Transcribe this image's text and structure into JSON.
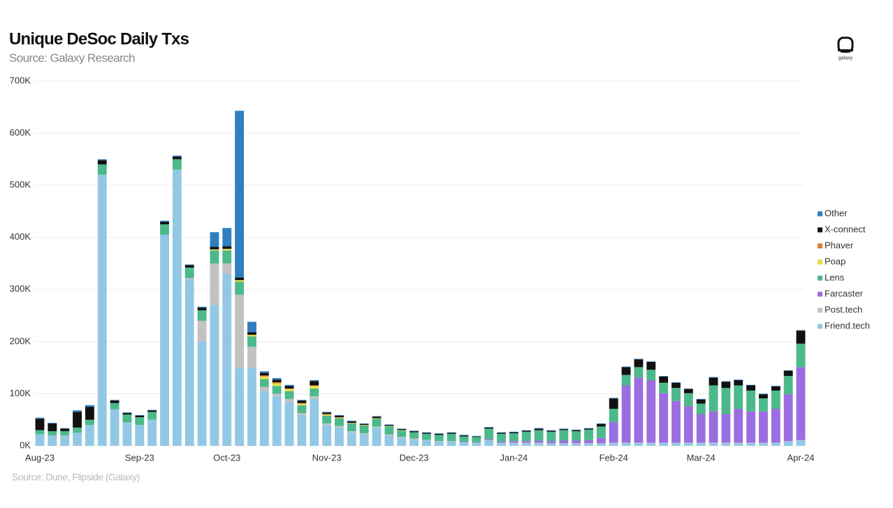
{
  "logo": "galaxy",
  "chart_data": {
    "type": "stacked_bar",
    "title": "Unique DeSoc Daily Txs",
    "subtitle": "Source: Galaxy Research",
    "footnote": "Source: Dune, Flipside (Galaxy)",
    "categories": [
      "Aug-23",
      null,
      null,
      null,
      null,
      null,
      null,
      null,
      "Sep-23",
      null,
      null,
      null,
      null,
      null,
      null,
      "Oct-23",
      null,
      null,
      null,
      null,
      null,
      null,
      null,
      "Nov-23",
      null,
      null,
      null,
      null,
      null,
      null,
      "Dec-23",
      null,
      null,
      null,
      null,
      null,
      null,
      null,
      "Jan-24",
      null,
      null,
      null,
      null,
      null,
      null,
      null,
      "Feb-24",
      null,
      null,
      null,
      null,
      null,
      null,
      "Mar-24",
      null,
      null,
      null,
      null,
      null,
      null,
      null,
      "Apr-24"
    ],
    "ylim": [
      0,
      700000
    ],
    "yticks": [
      {
        "value": 0,
        "label": "0K"
      },
      {
        "value": 100000,
        "label": "100K"
      },
      {
        "value": 200000,
        "label": "200K"
      },
      {
        "value": 300000,
        "label": "300K"
      },
      {
        "value": 400000,
        "label": "400K"
      },
      {
        "value": 500000,
        "label": "500K"
      },
      {
        "value": 600000,
        "label": "600K"
      },
      {
        "value": 700000,
        "label": "700K"
      }
    ],
    "grid": true,
    "legend": "right",
    "series": [
      {
        "name": "Friend.tech",
        "color": "#92c8e6",
        "values": [
          22000,
          20000,
          20000,
          25000,
          40000,
          520000,
          70000,
          45000,
          40000,
          50000,
          405000,
          530000,
          320000,
          200000,
          270000,
          330000,
          150000,
          150000,
          105000,
          95000,
          85000,
          60000,
          90000,
          40000,
          35000,
          25000,
          22000,
          35000,
          20000,
          15000,
          12000,
          10000,
          8000,
          8000,
          6000,
          5000,
          10000,
          5000,
          5000,
          5000,
          5000,
          4000,
          4000,
          4000,
          4000,
          4000,
          5000,
          5000,
          5000,
          5000,
          5000,
          5000,
          5000,
          5000,
          5000,
          5000,
          5000,
          5000,
          5000,
          5000,
          8000,
          10000
        ]
      },
      {
        "name": "Post.tech",
        "color": "#c2c2c2",
        "values": [
          0,
          0,
          0,
          0,
          0,
          0,
          0,
          0,
          0,
          0,
          0,
          0,
          2000,
          40000,
          80000,
          20000,
          140000,
          40000,
          8000,
          5000,
          5000,
          3000,
          5000,
          3000,
          3000,
          3000,
          2000,
          2000,
          2000,
          2000,
          2000,
          1000,
          1000,
          1000,
          1000,
          1000,
          1000,
          1000,
          1000,
          1000,
          1000,
          1000,
          1000,
          1000,
          1000,
          1000,
          1000,
          1000,
          1000,
          1000,
          1000,
          1000,
          1000,
          1000,
          1000,
          1000,
          1000,
          1000,
          1000,
          1000,
          1000,
          1000
        ]
      },
      {
        "name": "Farcaster",
        "color": "#9a6ee0",
        "values": [
          0,
          0,
          0,
          0,
          0,
          0,
          0,
          0,
          0,
          0,
          0,
          0,
          0,
          0,
          0,
          0,
          0,
          0,
          0,
          0,
          0,
          0,
          0,
          0,
          0,
          0,
          0,
          0,
          0,
          0,
          0,
          0,
          0,
          0,
          1000,
          1000,
          2000,
          2000,
          3000,
          3000,
          4000,
          4000,
          5000,
          5000,
          6000,
          10000,
          40000,
          110000,
          125000,
          120000,
          95000,
          80000,
          70000,
          55000,
          60000,
          55000,
          65000,
          60000,
          60000,
          65000,
          90000,
          140000
        ]
      },
      {
        "name": "Lens",
        "color": "#4cb98a",
        "values": [
          8000,
          8000,
          8000,
          10000,
          10000,
          20000,
          12000,
          15000,
          15000,
          15000,
          20000,
          20000,
          20000,
          20000,
          25000,
          25000,
          25000,
          20000,
          15000,
          15000,
          15000,
          15000,
          15000,
          15000,
          15000,
          15000,
          15000,
          15000,
          15000,
          12000,
          12000,
          12000,
          12000,
          14000,
          10000,
          10000,
          20000,
          15000,
          15000,
          18000,
          20000,
          18000,
          20000,
          18000,
          20000,
          22000,
          25000,
          20000,
          20000,
          20000,
          20000,
          25000,
          25000,
          20000,
          50000,
          50000,
          45000,
          40000,
          25000,
          35000,
          35000,
          45000
        ]
      },
      {
        "name": "Poap",
        "color": "#e6e04a",
        "values": [
          0,
          0,
          0,
          0,
          0,
          0,
          0,
          0,
          0,
          0,
          0,
          0,
          0,
          0,
          2000,
          3000,
          3000,
          3000,
          5000,
          5000,
          4000,
          3000,
          5000,
          2000,
          1000,
          1000,
          1000,
          1000,
          1000,
          1000,
          0,
          0,
          0,
          0,
          0,
          0,
          0,
          0,
          0,
          0,
          0,
          0,
          0,
          0,
          0,
          0,
          0,
          0,
          0,
          0,
          0,
          0,
          0,
          0,
          0,
          0,
          0,
          0,
          0,
          0,
          0,
          0
        ]
      },
      {
        "name": "Phaver",
        "color": "#e07b2a",
        "values": [
          0,
          0,
          0,
          0,
          0,
          0,
          0,
          0,
          0,
          0,
          0,
          0,
          0,
          0,
          0,
          0,
          0,
          0,
          2000,
          2000,
          1000,
          1000,
          1000,
          1000,
          1000,
          0,
          0,
          0,
          0,
          0,
          0,
          0,
          0,
          0,
          0,
          0,
          0,
          0,
          0,
          0,
          0,
          0,
          0,
          0,
          0,
          0,
          0,
          0,
          0,
          0,
          0,
          0,
          0,
          0,
          0,
          0,
          0,
          0,
          0,
          0,
          0,
          0
        ]
      },
      {
        "name": "X-connect",
        "color": "#111111",
        "values": [
          22000,
          15000,
          5000,
          30000,
          25000,
          8000,
          5000,
          3000,
          3000,
          3000,
          5000,
          5000,
          5000,
          5000,
          5000,
          5000,
          5000,
          5000,
          5000,
          5000,
          5000,
          5000,
          8000,
          3000,
          3000,
          3000,
          2000,
          3000,
          2000,
          2000,
          2000,
          2000,
          2000,
          2000,
          2000,
          1000,
          2000,
          2000,
          2000,
          2000,
          3000,
          2000,
          2000,
          2000,
          2000,
          5000,
          20000,
          15000,
          15000,
          15000,
          12000,
          10000,
          8000,
          8000,
          15000,
          12000,
          10000,
          10000,
          8000,
          8000,
          10000,
          25000
        ]
      },
      {
        "name": "Other",
        "color": "#2f7fc1",
        "values": [
          2000,
          1000,
          1000,
          3000,
          3000,
          2000,
          1000,
          1000,
          1000,
          1000,
          2000,
          2000,
          1000,
          2000,
          28000,
          35000,
          320000,
          20000,
          3000,
          3000,
          2000,
          1000,
          2000,
          1000,
          1000,
          1000,
          1000,
          1000,
          1000,
          1000,
          1000,
          1000,
          1000,
          1000,
          1000,
          1000,
          1000,
          1000,
          1000,
          1000,
          1000,
          1000,
          1000,
          1000,
          1000,
          1000,
          1000,
          1000,
          1000,
          1000,
          1000,
          1000,
          1000,
          1000,
          1000,
          1000,
          1000,
          1000,
          1000,
          1000,
          1000,
          1000
        ]
      }
    ]
  }
}
